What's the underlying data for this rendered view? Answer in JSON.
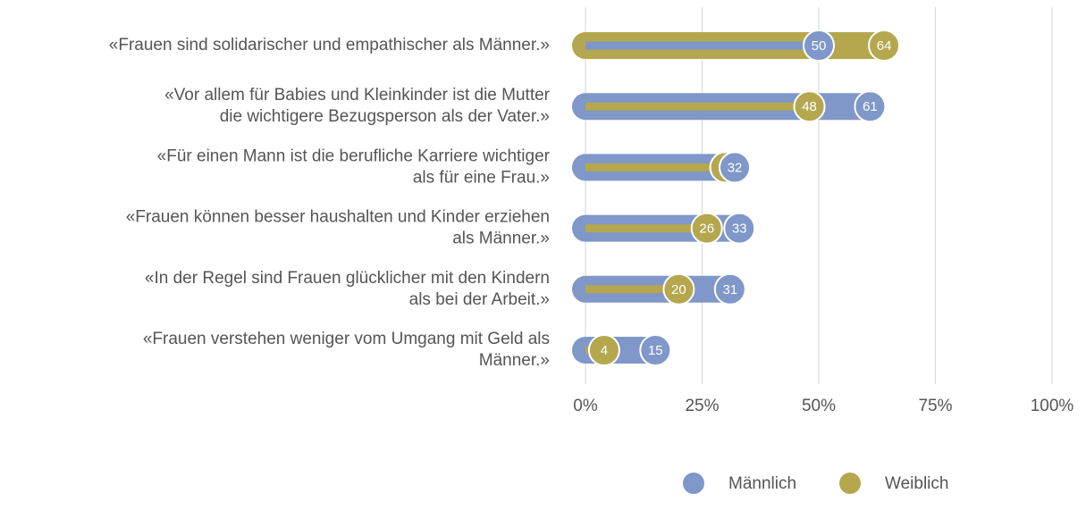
{
  "chart_data": {
    "type": "bar",
    "categories": [
      [
        "«Frauen sind solidarischer und empathischer als Männer.»"
      ],
      [
        "«Vor allem für Babies und Kleinkinder ist die Mutter",
        "die wichtigere Bezugsperson als der Vater.»"
      ],
      [
        "«Für einen Mann ist die berufliche Karriere wichtiger",
        "als für eine Frau.»"
      ],
      [
        "«Frauen können besser haushalten und Kinder erziehen",
        "als Männer.»"
      ],
      [
        "«In der Regel sind Frauen glücklicher mit den Kindern",
        "als bei der Arbeit.»"
      ],
      [
        "«Frauen verstehen weniger vom Umgang mit Geld als",
        "Männer.»"
      ]
    ],
    "series": [
      {
        "name": "Männlich",
        "color": "#7f97c9",
        "values": [
          50,
          61,
          32,
          33,
          31,
          15
        ]
      },
      {
        "name": "Weiblich",
        "color": "#b5a74e",
        "values": [
          64,
          48,
          30,
          26,
          20,
          4
        ]
      }
    ],
    "xlim": [
      0,
      100
    ],
    "xticks": [
      {
        "value": 0,
        "label": "0%"
      },
      {
        "value": 25,
        "label": "25%"
      },
      {
        "value": 50,
        "label": "50%"
      },
      {
        "value": 75,
        "label": "75%"
      },
      {
        "value": 100,
        "label": "100%"
      }
    ],
    "grid": true,
    "legend": "bottom"
  }
}
